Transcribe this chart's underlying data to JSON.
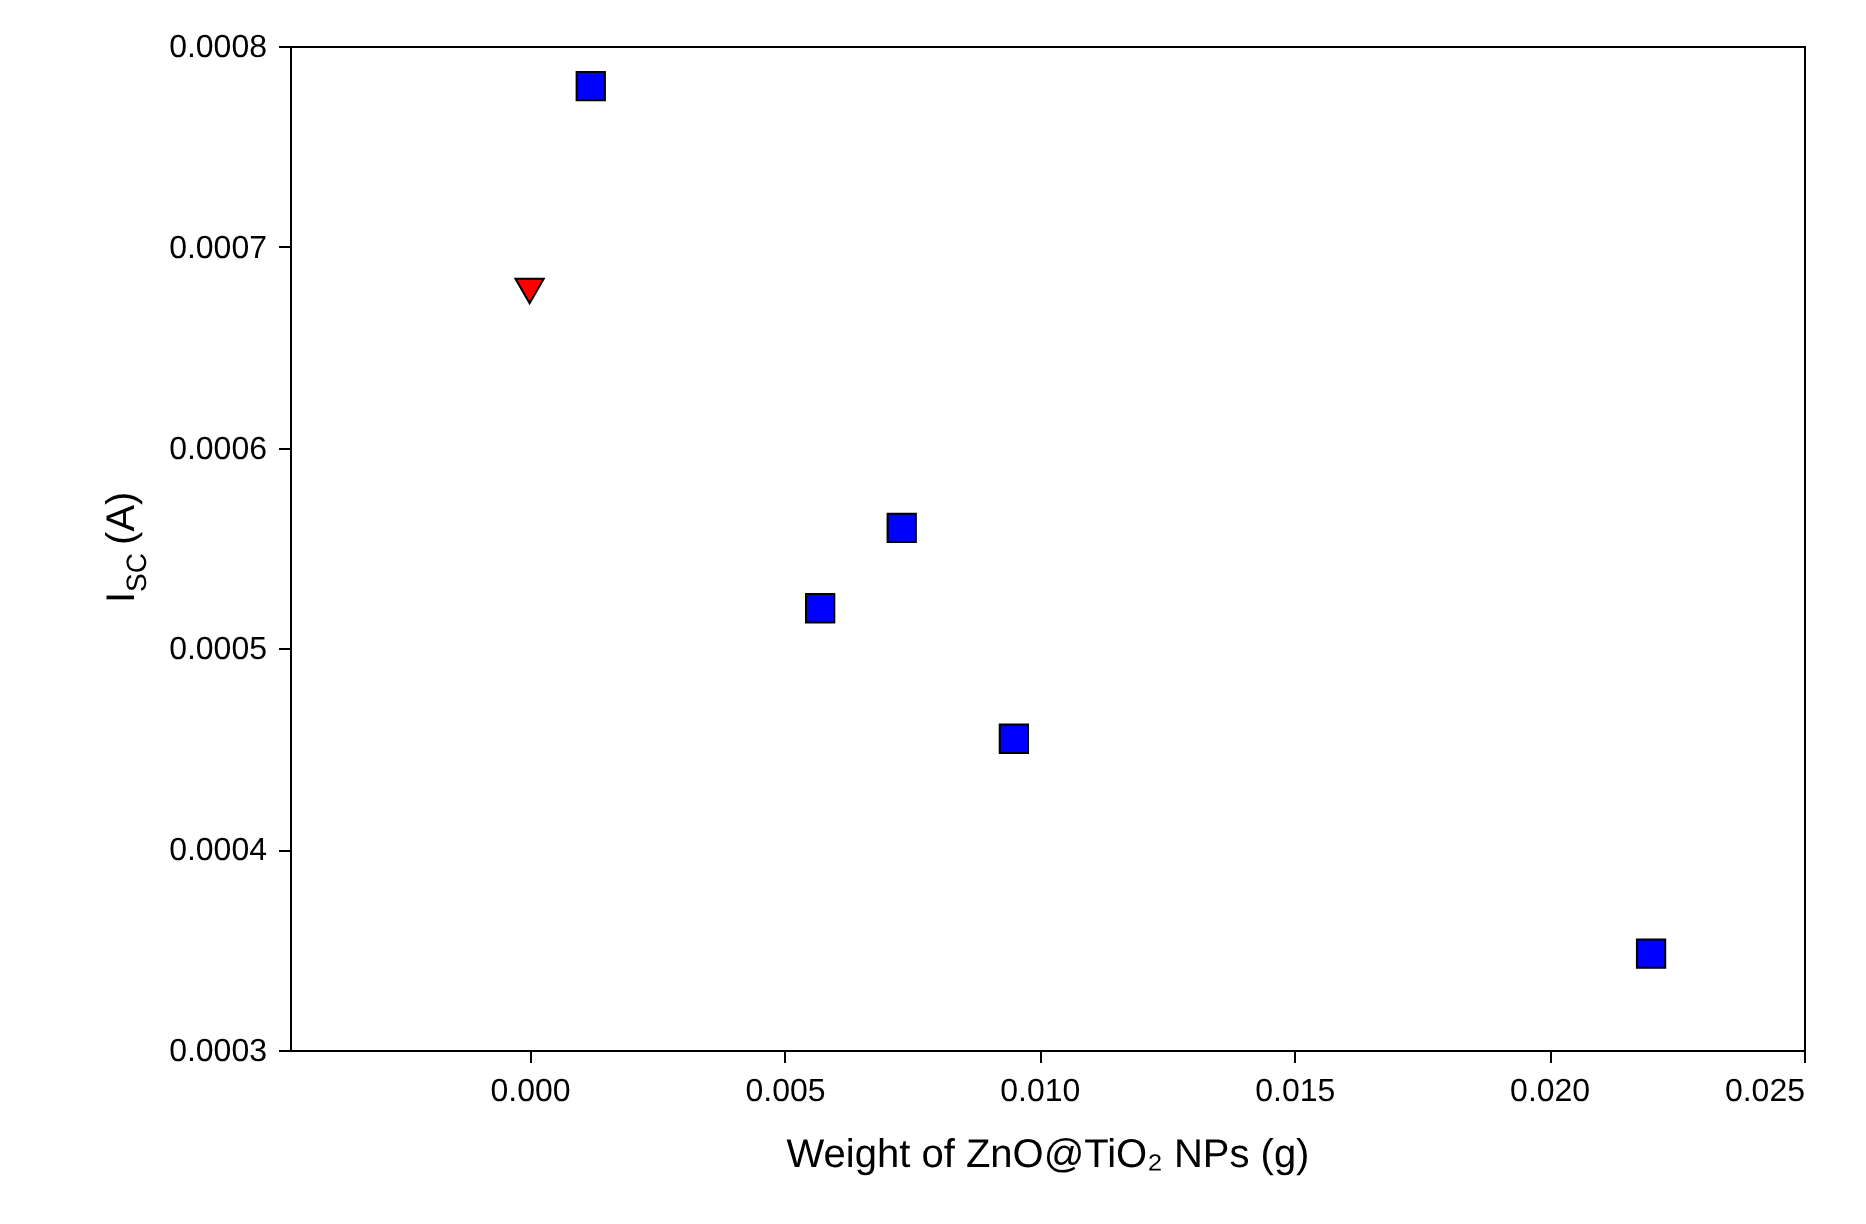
{
  "chart_data": {
    "type": "scatter",
    "xlabel": "Weight of ZnO@TiO₂ NPs (g)",
    "ylabel": "I$_{SC}$ (A)",
    "series": [
      {
        "color": "#ff0000",
        "marker": "triangle",
        "x": [
          0.0
        ],
        "values": [
          0.000678
        ]
      },
      {
        "color": "#0000ff",
        "marker": "square",
        "x": [
          0.0012,
          0.0057,
          0.0073,
          0.0095,
          0.022
        ],
        "values": [
          0.00078,
          0.00052,
          0.00056,
          0.000455,
          0.000348
        ]
      }
    ],
    "xlim": [
      -0.0047,
      0.025
    ],
    "ylim": [
      0.0003,
      0.0008
    ],
    "xticks": [
      {
        "value": 0,
        "label": "0.000"
      },
      {
        "value": 0.005,
        "label": "0.005"
      },
      {
        "value": 0.01,
        "label": "0.010"
      },
      {
        "value": 0.015,
        "label": "0.015"
      },
      {
        "value": 0.02,
        "label": "0.020"
      },
      {
        "value": 0.025,
        "label": "0.025"
      }
    ],
    "yticks": [
      0.0003,
      0.0004,
      0.0005,
      0.0006,
      0.0007,
      0.0008
    ],
    "grid": false
  }
}
